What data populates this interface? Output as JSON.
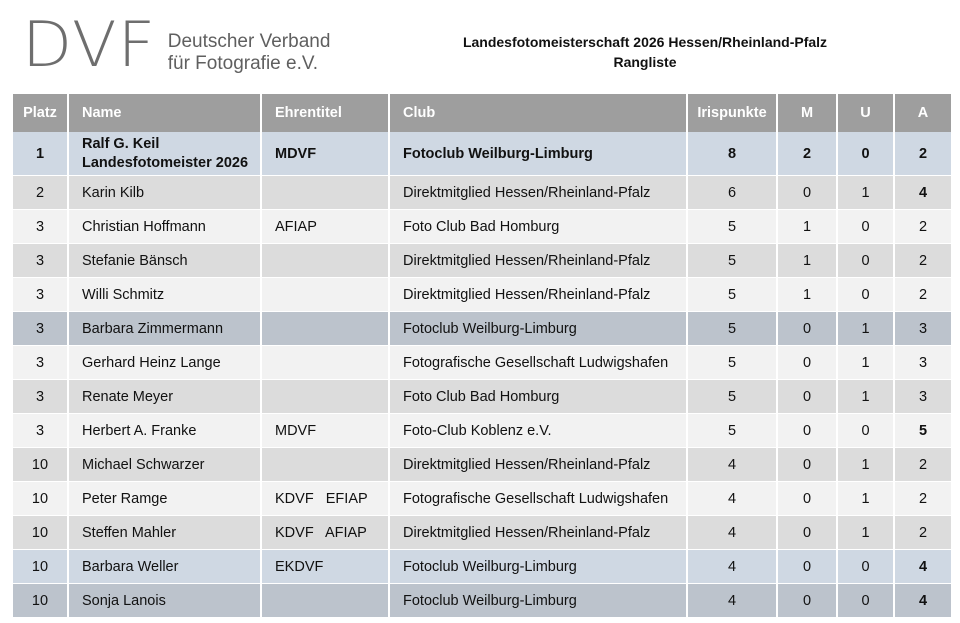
{
  "header": {
    "logo_mark": "DVF",
    "logo_line1": "Deutscher Verband",
    "logo_line2": "für Fotografie e.V.",
    "title": "Landesfotomeisterschaft 2026 Hessen/Rheinland-Pfalz",
    "subtitle": "Rangliste"
  },
  "table": {
    "columns": [
      "Platz",
      "Name",
      "Ehrentitel",
      "Club",
      "Irispunkte",
      "M",
      "U",
      "A"
    ],
    "rows": [
      {
        "platz": "1",
        "name": "Ralf G. Keil",
        "name2": "Landesfotomeister 2026",
        "titel": "MDVF",
        "club": "Fotoclub Weilburg-Limburg",
        "iris": "8",
        "m": "2",
        "u": "0",
        "a": "2"
      },
      {
        "platz": "2",
        "name": "Karin Kilb",
        "titel": "",
        "club": "Direktmitglied Hessen/Rheinland-Pfalz",
        "iris": "6",
        "m": "0",
        "u": "1",
        "a": "4"
      },
      {
        "platz": "3",
        "name": "Christian Hoffmann",
        "titel": "AFIAP",
        "club": "Foto Club Bad Homburg",
        "iris": "5",
        "m": "1",
        "u": "0",
        "a": "2"
      },
      {
        "platz": "3",
        "name": "Stefanie Bänsch",
        "titel": "",
        "club": "Direktmitglied Hessen/Rheinland-Pfalz",
        "iris": "5",
        "m": "1",
        "u": "0",
        "a": "2"
      },
      {
        "platz": "3",
        "name": "Willi Schmitz",
        "titel": "",
        "club": "Direktmitglied Hessen/Rheinland-Pfalz",
        "iris": "5",
        "m": "1",
        "u": "0",
        "a": "2"
      },
      {
        "platz": "3",
        "name": "Barbara Zimmermann",
        "titel": "",
        "club": "Fotoclub Weilburg-Limburg",
        "iris": "5",
        "m": "0",
        "u": "1",
        "a": "3"
      },
      {
        "platz": "3",
        "name": "Gerhard Heinz Lange",
        "titel": "",
        "club": "Fotografische Gesellschaft Ludwigshafen",
        "iris": "5",
        "m": "0",
        "u": "1",
        "a": "3"
      },
      {
        "platz": "3",
        "name": "Renate Meyer",
        "titel": "",
        "club": "Foto Club Bad Homburg",
        "iris": "5",
        "m": "0",
        "u": "1",
        "a": "3"
      },
      {
        "platz": "3",
        "name": "Herbert A. Franke",
        "titel": "MDVF",
        "club": "Foto-Club Koblenz e.V.",
        "iris": "5",
        "m": "0",
        "u": "0",
        "a": "5"
      },
      {
        "platz": "10",
        "name": "Michael Schwarzer",
        "titel": "",
        "club": "Direktmitglied Hessen/Rheinland-Pfalz",
        "iris": "4",
        "m": "0",
        "u": "1",
        "a": "2"
      },
      {
        "platz": "10",
        "name": "Peter Ramge",
        "titel": "KDVF   EFIAP",
        "club": "Fotografische Gesellschaft Ludwigshafen",
        "iris": "4",
        "m": "0",
        "u": "1",
        "a": "2"
      },
      {
        "platz": "10",
        "name": "Steffen Mahler",
        "titel": "KDVF   AFIAP",
        "club": "Direktmitglied Hessen/Rheinland-Pfalz",
        "iris": "4",
        "m": "0",
        "u": "1",
        "a": "2"
      },
      {
        "platz": "10",
        "name": "Barbara Weller",
        "titel": "EKDVF",
        "club": "Fotoclub Weilburg-Limburg",
        "iris": "4",
        "m": "0",
        "u": "0",
        "a": "4"
      },
      {
        "platz": "10",
        "name": "Sonja Lanois",
        "titel": "",
        "club": "Fotoclub Weilburg-Limburg",
        "iris": "4",
        "m": "0",
        "u": "0",
        "a": "4"
      }
    ]
  },
  "colors": {
    "header_bg": "#9e9e9e",
    "row_odd": "#dcdcdc",
    "row_even": "#f2f2f2",
    "highlight_club": "#cfd8e3",
    "highlight_club_dark": "#bcc3cc"
  }
}
